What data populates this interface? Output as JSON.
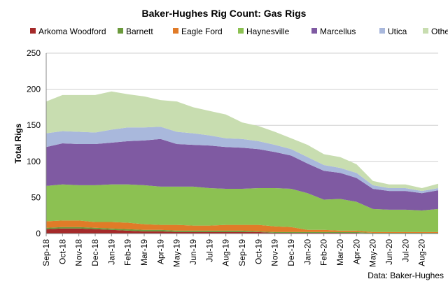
{
  "chart_data": {
    "type": "area",
    "stacked": true,
    "title": "Baker-Hughes Rig Count: Gas Rigs",
    "ylabel": "Total Rigs",
    "xlabel": "",
    "source": "Data: Baker-Hughes",
    "ylim": [
      0,
      250
    ],
    "yticks": [
      0,
      50,
      100,
      150,
      200,
      250
    ],
    "grid": "horizontal",
    "legend_position": "top",
    "x_ticks": [
      "Sep-18",
      "Oct-18",
      "Nov-18",
      "Dec-18",
      "Jan-19",
      "Feb-19",
      "Mar-19",
      "Apr-19",
      "May-19",
      "Jun-19",
      "Jul-19",
      "Aug-19",
      "Sep-19",
      "Oct-19",
      "Nov-19",
      "Dec-19",
      "Jan-20",
      "Feb-20",
      "Mar-20",
      "Apr-20",
      "May-20",
      "Jun-20",
      "Jul-20",
      "Aug-20"
    ],
    "x": [
      "Sep-18",
      "Oct-18",
      "Nov-18",
      "Dec-18",
      "Jan-19",
      "Feb-19",
      "Mar-19",
      "Apr-19",
      "May-19",
      "Jun-19",
      "Jul-19",
      "Aug-19",
      "Sep-19",
      "Oct-19",
      "Nov-19",
      "Dec-19",
      "Jan-20",
      "Feb-20",
      "Mar-20",
      "Apr-20",
      "May-20",
      "Jun-20",
      "Jul-20",
      "Aug-20",
      "Sep-20"
    ],
    "series": [
      {
        "name": "Arkoma Woodford",
        "color": "#a52a2a",
        "values": [
          6,
          7,
          7,
          6,
          5,
          4,
          3,
          3,
          2,
          2,
          2,
          2,
          2,
          2,
          1,
          1,
          1,
          1,
          1,
          1,
          0,
          0,
          0,
          0,
          0
        ]
      },
      {
        "name": "Barnett",
        "color": "#6b9a3c",
        "values": [
          2,
          2,
          2,
          2,
          2,
          2,
          2,
          2,
          2,
          2,
          2,
          2,
          2,
          1,
          1,
          1,
          1,
          1,
          1,
          1,
          1,
          1,
          1,
          1,
          1
        ]
      },
      {
        "name": "Eagle Ford",
        "color": "#e07b28",
        "values": [
          9,
          9,
          9,
          8,
          9,
          9,
          8,
          7,
          8,
          7,
          7,
          8,
          8,
          9,
          8,
          7,
          3,
          3,
          2,
          2,
          1,
          1,
          1,
          1,
          1
        ]
      },
      {
        "name": "Haynesville",
        "color": "#8cc152",
        "values": [
          49,
          50,
          49,
          51,
          52,
          53,
          54,
          53,
          53,
          54,
          52,
          50,
          50,
          51,
          53,
          53,
          51,
          42,
          44,
          40,
          32,
          31,
          31,
          30,
          32
        ]
      },
      {
        "name": "Marcellus",
        "color": "#7f5aa2",
        "values": [
          54,
          57,
          57,
          57,
          58,
          60,
          62,
          66,
          59,
          58,
          59,
          58,
          57,
          54,
          50,
          46,
          41,
          40,
          36,
          33,
          28,
          26,
          26,
          24,
          26
        ]
      },
      {
        "name": "Utica",
        "color": "#a9b8dc",
        "values": [
          19,
          17,
          17,
          16,
          18,
          19,
          18,
          17,
          17,
          16,
          14,
          12,
          12,
          11,
          10,
          9,
          9,
          8,
          7,
          7,
          5,
          4,
          4,
          3,
          3
        ]
      },
      {
        "name": "Others",
        "color": "#c8ddb0",
        "values": [
          44,
          50,
          51,
          52,
          53,
          46,
          43,
          37,
          42,
          36,
          34,
          33,
          23,
          21,
          18,
          15,
          17,
          15,
          15,
          12,
          6,
          5,
          5,
          4,
          6
        ]
      }
    ]
  }
}
